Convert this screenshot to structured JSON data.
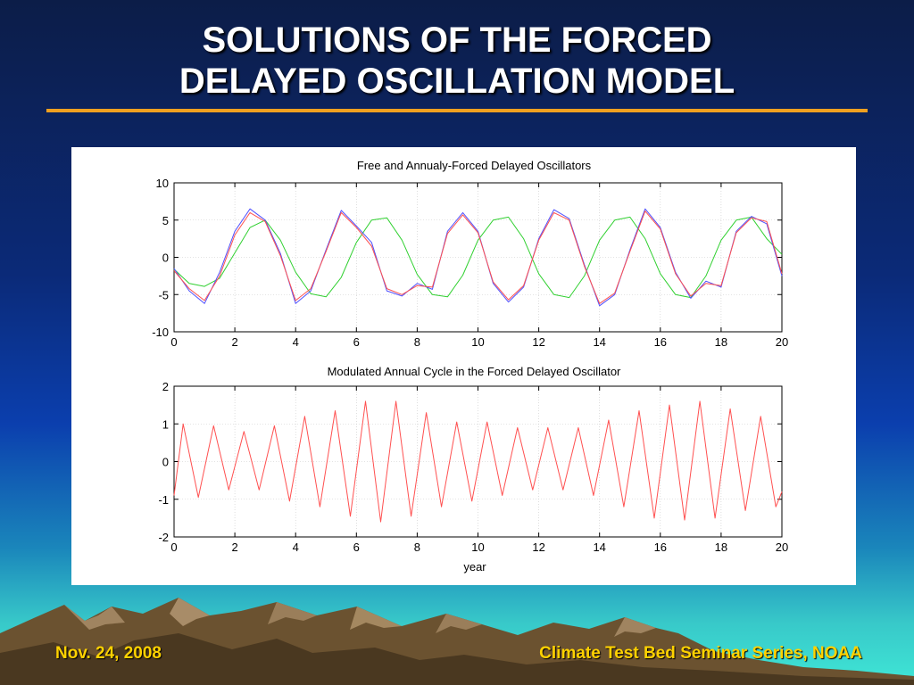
{
  "slide": {
    "title_line1": "SOLUTIONS OF THE FORCED",
    "title_line2": "DELAYED OSCILLATION MODEL",
    "footer_date": "Nov. 24, 2008",
    "footer_series": "Climate Test Bed Seminar Series, NOAA"
  },
  "colors": {
    "title_text": "#ffffff",
    "title_rule": "#f0a020",
    "footer_text": "#ffd200",
    "green_series": "#30d030",
    "blue_series": "#5050ff",
    "red_series": "#ff5050"
  },
  "chart_data": [
    {
      "type": "line",
      "title": "Free and Annualy-Forced Delayed Oscillators",
      "xlabel": "",
      "ylabel": "",
      "xlim": [
        0,
        20
      ],
      "ylim": [
        -10,
        10
      ],
      "xticks": [
        0,
        2,
        4,
        6,
        8,
        10,
        12,
        14,
        16,
        18,
        20
      ],
      "yticks": [
        -10,
        -5,
        0,
        5,
        10
      ],
      "grid": true,
      "legend": "none",
      "series": [
        {
          "color": "#30d030",
          "x": [
            0,
            0.5,
            1,
            1.5,
            2,
            2.5,
            3,
            3.5,
            4,
            4.5,
            5,
            5.5,
            6,
            6.5,
            7,
            7.5,
            8,
            8.5,
            9,
            9.5,
            10,
            10.5,
            11,
            11.5,
            12,
            12.5,
            13,
            13.5,
            14,
            14.5,
            15,
            15.5,
            16,
            16.5,
            17,
            17.5,
            18,
            18.5,
            19,
            19.5,
            20
          ],
          "y": [
            -1.6,
            -3.5,
            -3.9,
            -2.8,
            0.6,
            4.0,
            5.0,
            2.3,
            -2.0,
            -4.9,
            -5.3,
            -2.7,
            2.0,
            5.0,
            5.3,
            2.3,
            -2.3,
            -5.0,
            -5.3,
            -2.4,
            2.3,
            5.0,
            5.4,
            2.5,
            -2.2,
            -5.0,
            -5.4,
            -2.5,
            2.3,
            5.0,
            5.4,
            2.5,
            -2.2,
            -5.0,
            -5.4,
            -2.5,
            2.3,
            5.0,
            5.4,
            2.5,
            0.4
          ]
        },
        {
          "color": "#5050ff",
          "x": [
            0,
            0.5,
            1,
            1.5,
            2,
            2.5,
            3,
            3.5,
            4,
            4.5,
            5,
            5.5,
            6,
            6.5,
            7,
            7.5,
            8,
            8.5,
            9,
            9.5,
            10,
            10.5,
            11,
            11.5,
            12,
            12.5,
            13,
            13.5,
            14,
            14.5,
            15,
            15.5,
            16,
            16.5,
            17,
            17.5,
            18,
            18.5,
            19,
            19.5,
            20
          ],
          "y": [
            -1.5,
            -4.5,
            -6.2,
            -2.0,
            3.5,
            6.5,
            5.0,
            0.5,
            -6.2,
            -4.5,
            1.0,
            6.3,
            4.2,
            2.0,
            -4.5,
            -5.2,
            -3.5,
            -4.3,
            3.5,
            6.0,
            3.5,
            -3.5,
            -6.0,
            -4.0,
            2.5,
            6.4,
            5.2,
            -1.0,
            -6.5,
            -5.0,
            1.0,
            6.5,
            4.0,
            -2.0,
            -5.5,
            -3.2,
            -4.0,
            3.5,
            5.5,
            4.5,
            -2.5
          ]
        },
        {
          "color": "#ff5050",
          "x": [
            0,
            0.5,
            1,
            1.5,
            2,
            2.5,
            3,
            3.5,
            4,
            4.5,
            5,
            5.5,
            6,
            6.5,
            7,
            7.5,
            8,
            8.5,
            9,
            9.5,
            10,
            10.5,
            11,
            11.5,
            12,
            12.5,
            13,
            13.5,
            14,
            14.5,
            15,
            15.5,
            16,
            16.5,
            17,
            17.5,
            18,
            18.5,
            19,
            19.5,
            20
          ],
          "y": [
            -1.8,
            -4.2,
            -5.8,
            -2.5,
            3.0,
            6.0,
            4.8,
            0.2,
            -5.8,
            -4.2,
            0.8,
            6.0,
            4.0,
            1.5,
            -4.2,
            -5.0,
            -3.8,
            -4.0,
            3.2,
            5.7,
            3.3,
            -3.3,
            -5.7,
            -3.8,
            2.3,
            6.0,
            5.0,
            -1.2,
            -6.2,
            -4.8,
            0.8,
            6.2,
            3.8,
            -2.2,
            -5.2,
            -3.5,
            -3.8,
            3.3,
            5.3,
            4.8,
            -2.2
          ]
        }
      ]
    },
    {
      "type": "line",
      "title": "Modulated Annual Cycle in the Forced Delayed Oscillator",
      "xlabel": "year",
      "ylabel": "",
      "xlim": [
        0,
        20
      ],
      "ylim": [
        -2,
        2
      ],
      "xticks": [
        0,
        2,
        4,
        6,
        8,
        10,
        12,
        14,
        16,
        18,
        20
      ],
      "yticks": [
        -2,
        -1,
        0,
        1,
        2
      ],
      "grid": true,
      "legend": "none",
      "series": [
        {
          "color": "#ff5050",
          "x": [
            0,
            0.3,
            0.8,
            1.3,
            1.8,
            2.3,
            2.8,
            3.3,
            3.8,
            4.3,
            4.8,
            5.3,
            5.8,
            6.3,
            6.8,
            7.3,
            7.8,
            8.3,
            8.8,
            9.3,
            9.8,
            10.3,
            10.8,
            11.3,
            11.8,
            12.3,
            12.8,
            13.3,
            13.8,
            14.3,
            14.8,
            15.3,
            15.8,
            16.3,
            16.8,
            17.3,
            17.8,
            18.3,
            18.8,
            19.3,
            19.8,
            20
          ],
          "y": [
            -0.9,
            1.0,
            -0.95,
            0.95,
            -0.75,
            0.8,
            -0.75,
            0.95,
            -1.05,
            1.2,
            -1.2,
            1.35,
            -1.45,
            1.6,
            -1.6,
            1.6,
            -1.45,
            1.3,
            -1.2,
            1.05,
            -1.05,
            1.05,
            -0.9,
            0.9,
            -0.75,
            0.9,
            -0.75,
            0.9,
            -0.9,
            1.1,
            -1.2,
            1.35,
            -1.5,
            1.5,
            -1.55,
            1.6,
            -1.5,
            1.4,
            -1.3,
            1.2,
            -1.2,
            -0.8
          ]
        }
      ]
    }
  ]
}
